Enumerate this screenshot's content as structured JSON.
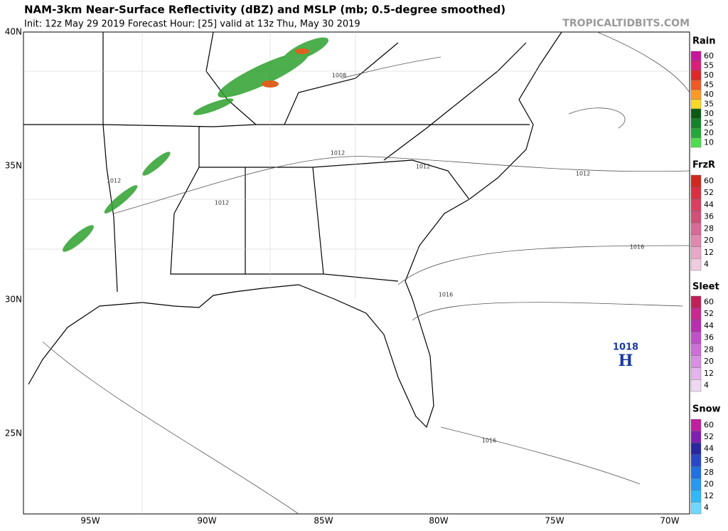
{
  "header": {
    "title": "NAM-3km Near-Surface Reflectivity (dBZ) and MSLP (mb; 0.5-degree smoothed)",
    "subtitle": "Init: 12z May 29 2019   Forecast Hour: [25]   valid at 13z Thu, May 30 2019",
    "site": "TROPICALTIDBITS.COM"
  },
  "map": {
    "lat_labels": [
      "40N",
      "35N",
      "30N",
      "25N"
    ],
    "lon_labels": [
      "95W",
      "90W",
      "85W",
      "80W",
      "75W",
      "70W"
    ],
    "isobar_labels": [
      "1008",
      "1012",
      "1012",
      "1012",
      "1012",
      "1012",
      "1016",
      "1016",
      "1016"
    ],
    "high": {
      "pressure": "1018",
      "label": "H"
    }
  },
  "legends": [
    {
      "title": "Rain",
      "labels": [
        "60",
        "55",
        "50",
        "45",
        "40",
        "35",
        "30",
        "25",
        "20",
        "10"
      ],
      "colors": [
        "#c8169a",
        "#d8207a",
        "#e02828",
        "#f05a28",
        "#ff9a28",
        "#f8d828",
        "#0a5a14",
        "#14822a",
        "#24a83a",
        "#50dc50"
      ]
    },
    {
      "title": "FrzR",
      "labels": [
        "60",
        "52",
        "44",
        "36",
        "28",
        "20",
        "12",
        "4"
      ],
      "colors": [
        "#d0281e",
        "#d83040",
        "#d84060",
        "#d05078",
        "#d86a98",
        "#e088b0",
        "#e8a8c8",
        "#f0cce0"
      ]
    },
    {
      "title": "Sleet",
      "labels": [
        "60",
        "52",
        "44",
        "36",
        "28",
        "20",
        "12",
        "4"
      ],
      "colors": [
        "#c0205a",
        "#c82890",
        "#b830b0",
        "#c050c8",
        "#cc70d8",
        "#d890e0",
        "#e4b4ec",
        "#f0d8f4"
      ]
    },
    {
      "title": "Snow",
      "labels": [
        "60",
        "52",
        "44",
        "36",
        "28",
        "20",
        "12",
        "4"
      ],
      "colors": [
        "#c020a0",
        "#8020b0",
        "#2828a0",
        "#2848c8",
        "#2070e0",
        "#2898f0",
        "#30b8f8",
        "#70d8ff"
      ]
    }
  ]
}
